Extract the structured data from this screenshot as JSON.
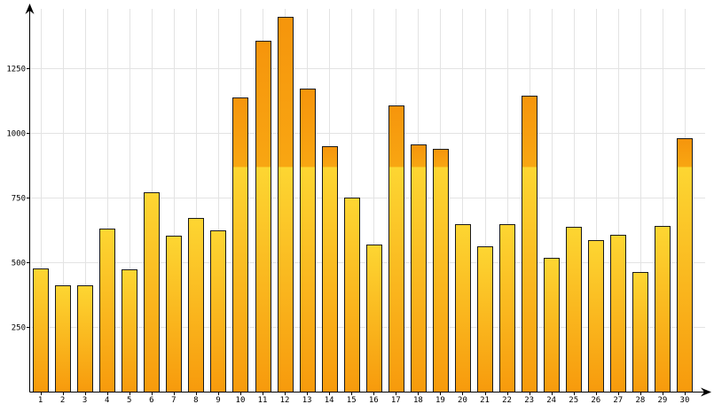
{
  "chart_data": {
    "type": "bar",
    "title": "",
    "xlabel": "",
    "ylabel": "",
    "categories": [
      "1",
      "2",
      "3",
      "4",
      "5",
      "6",
      "7",
      "8",
      "9",
      "10",
      "11",
      "12",
      "13",
      "14",
      "15",
      "16",
      "17",
      "18",
      "19",
      "20",
      "21",
      "22",
      "23",
      "24",
      "25",
      "26",
      "27",
      "28",
      "29",
      "30"
    ],
    "values": [
      475,
      410,
      412,
      630,
      472,
      770,
      602,
      670,
      622,
      1138,
      1355,
      1450,
      1172,
      948,
      750,
      568,
      1106,
      955,
      937,
      648,
      562,
      648,
      1145,
      517,
      636,
      585,
      605,
      462,
      640,
      980
    ],
    "threshold": 870,
    "ylim": [
      0,
      1500
    ],
    "yticks": [
      250,
      500,
      750,
      1000,
      1250
    ],
    "grid": true,
    "colors": {
      "bar_low_top": "#fdd632",
      "bar_low_bottom": "#f79a0c",
      "bar_over_top": "#f6950c",
      "bar_over_bottom": "#f8a612",
      "outline": "#1a1a1a",
      "grid": "#e3e3e3",
      "axis": "#000000"
    }
  }
}
